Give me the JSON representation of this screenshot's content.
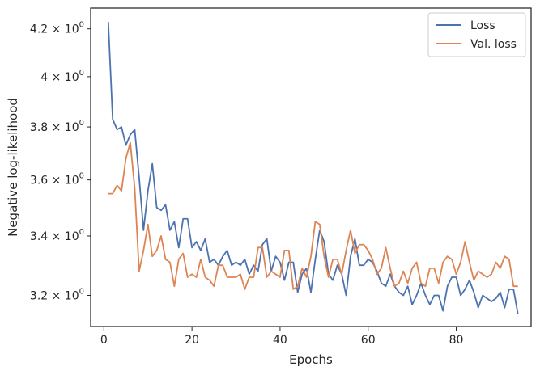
{
  "chart_data": {
    "type": "line",
    "xlabel": "Epochs",
    "ylabel": "Negative log-likelihood",
    "yscale": "log",
    "xlim": [
      -3,
      97
    ],
    "ylim": [
      3.1,
      4.29
    ],
    "xticks": [
      0,
      20,
      40,
      60,
      80
    ],
    "xtick_labels": [
      "0",
      "20",
      "40",
      "60",
      "80"
    ],
    "yticks": [
      3.2,
      3.4,
      3.6,
      3.8,
      4.0,
      4.2
    ],
    "ytick_labels": [
      {
        "mantissa": "3.2",
        "times": "×",
        "base": "10",
        "exp": "0"
      },
      {
        "mantissa": "3.4",
        "times": "×",
        "base": "10",
        "exp": "0"
      },
      {
        "mantissa": "3.6",
        "times": "×",
        "base": "10",
        "exp": "0"
      },
      {
        "mantissa": "3.8",
        "times": "×",
        "base": "10",
        "exp": "0"
      },
      {
        "mantissa": "4",
        "times": "×",
        "base": "10",
        "exp": "0"
      },
      {
        "mantissa": "4.2",
        "times": "×",
        "base": "10",
        "exp": "0"
      }
    ],
    "grid": false,
    "legend_position": "top-right",
    "x": [
      1,
      2,
      3,
      4,
      5,
      6,
      7,
      8,
      9,
      10,
      11,
      12,
      13,
      14,
      15,
      16,
      17,
      18,
      19,
      20,
      21,
      22,
      23,
      24,
      25,
      26,
      27,
      28,
      29,
      30,
      31,
      32,
      33,
      34,
      35,
      36,
      37,
      38,
      39,
      40,
      41,
      42,
      43,
      44,
      45,
      46,
      47,
      48,
      49,
      50,
      51,
      52,
      53,
      54,
      55,
      56,
      57,
      58,
      59,
      60,
      61,
      62,
      63,
      64,
      65,
      66,
      67,
      68,
      69,
      70,
      71,
      72,
      73,
      74,
      75,
      76,
      77,
      78,
      79,
      80,
      81,
      82,
      83,
      84,
      85,
      86,
      87,
      88,
      89,
      90,
      91,
      92,
      93,
      94
    ],
    "series": [
      {
        "name": "Loss",
        "color": "#4c72b0",
        "values": [
          4.23,
          3.83,
          3.79,
          3.8,
          3.73,
          3.77,
          3.79,
          3.61,
          3.42,
          3.56,
          3.66,
          3.5,
          3.49,
          3.51,
          3.42,
          3.45,
          3.36,
          3.46,
          3.46,
          3.36,
          3.38,
          3.35,
          3.39,
          3.31,
          3.32,
          3.3,
          3.33,
          3.35,
          3.3,
          3.31,
          3.3,
          3.32,
          3.27,
          3.3,
          3.28,
          3.37,
          3.39,
          3.28,
          3.33,
          3.31,
          3.25,
          3.31,
          3.31,
          3.21,
          3.27,
          3.29,
          3.21,
          3.32,
          3.42,
          3.38,
          3.27,
          3.25,
          3.3,
          3.27,
          3.2,
          3.33,
          3.39,
          3.3,
          3.3,
          3.32,
          3.31,
          3.28,
          3.24,
          3.23,
          3.27,
          3.23,
          3.21,
          3.2,
          3.23,
          3.17,
          3.2,
          3.24,
          3.2,
          3.17,
          3.2,
          3.2,
          3.15,
          3.23,
          3.26,
          3.26,
          3.2,
          3.22,
          3.25,
          3.21,
          3.16,
          3.2,
          3.19,
          3.18,
          3.19,
          3.21,
          3.16,
          3.22,
          3.22,
          3.14
        ]
      },
      {
        "name": "Val. loss",
        "color": "#dd8452",
        "values": [
          3.55,
          3.55,
          3.58,
          3.56,
          3.68,
          3.74,
          3.57,
          3.28,
          3.35,
          3.44,
          3.33,
          3.35,
          3.4,
          3.32,
          3.31,
          3.23,
          3.32,
          3.34,
          3.26,
          3.27,
          3.26,
          3.32,
          3.26,
          3.25,
          3.23,
          3.3,
          3.3,
          3.26,
          3.26,
          3.26,
          3.27,
          3.22,
          3.26,
          3.26,
          3.36,
          3.36,
          3.26,
          3.28,
          3.27,
          3.26,
          3.35,
          3.35,
          3.22,
          3.23,
          3.29,
          3.26,
          3.33,
          3.45,
          3.44,
          3.33,
          3.26,
          3.32,
          3.32,
          3.27,
          3.35,
          3.42,
          3.34,
          3.37,
          3.37,
          3.35,
          3.32,
          3.27,
          3.29,
          3.36,
          3.29,
          3.23,
          3.24,
          3.28,
          3.24,
          3.29,
          3.31,
          3.24,
          3.23,
          3.29,
          3.29,
          3.24,
          3.31,
          3.33,
          3.32,
          3.27,
          3.31,
          3.38,
          3.31,
          3.25,
          3.28,
          3.27,
          3.26,
          3.27,
          3.31,
          3.29,
          3.33,
          3.32,
          3.23,
          3.23
        ]
      }
    ]
  }
}
